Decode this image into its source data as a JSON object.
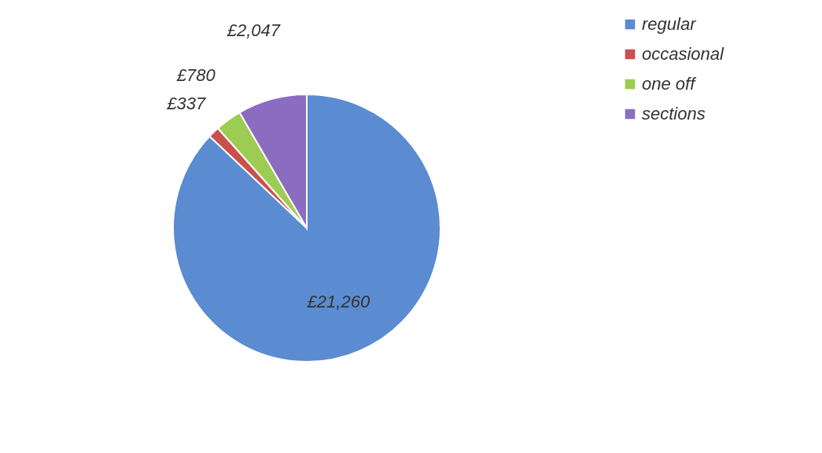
{
  "chart_data": {
    "type": "pie",
    "categories": [
      "regular",
      "occasional",
      "one off",
      "sections"
    ],
    "values": [
      21260,
      337,
      780,
      2047
    ],
    "colors": [
      "#5b8bd0",
      "#c9504d",
      "#9ccc52",
      "#8a6cc0"
    ],
    "value_labels": [
      "£21,260",
      "£337",
      "£780",
      "£2,047"
    ],
    "legend": "right"
  }
}
